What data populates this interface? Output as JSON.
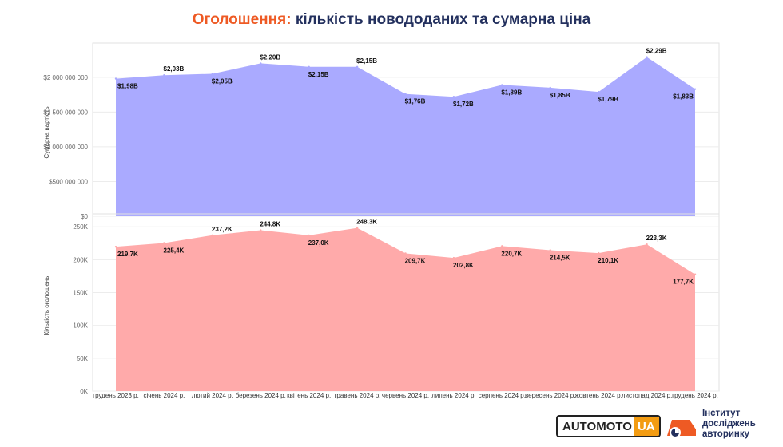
{
  "title": {
    "prefix": "Оголошення:",
    "rest": " кількість новододаних та сумарна ціна"
  },
  "colors": {
    "title_accent": "#ee5a24",
    "title_main": "#23305e",
    "top_area": "#aaaaff",
    "bottom_area": "#ffaaaa",
    "logo_orange": "#f39c12"
  },
  "chart_data": [
    {
      "type": "area",
      "ylabel": "Сумарна вартість",
      "ylim": [
        0,
        2400000000
      ],
      "y_ticks": [
        "$0",
        "$500 000 000",
        "$1 000 000 000",
        "$1 500 000 000",
        "$2 000 000 000"
      ],
      "y_tick_values": [
        0,
        500000000,
        1000000000,
        1500000000,
        2000000000
      ],
      "categories": [
        "грудень 2023 р.",
        "січень 2024 р.",
        "лютий 2024 р.",
        "березень 2024 р.",
        "квітень 2024 р.",
        "травень 2024 р.",
        "червень 2024 р.",
        "липень 2024 р.",
        "серпень 2024 р.",
        "вересень 2024 р.",
        "жовтень 2024 р.",
        "листопад 2024 р.",
        "грудень 2024 р."
      ],
      "values": [
        1980000000,
        2030000000,
        2050000000,
        2200000000,
        2150000000,
        2150000000,
        1760000000,
        1720000000,
        1890000000,
        1850000000,
        1790000000,
        2290000000,
        1830000000
      ],
      "labels": [
        "$1,98B",
        "$2,03B",
        "$2,05B",
        "$2,20B",
        "$2,15B",
        "$2,15B",
        "$1,76B",
        "$1,72B",
        "$1,89B",
        "$1,85B",
        "$1,79B",
        "$2,29B",
        "$1,83B"
      ],
      "grid": true
    },
    {
      "type": "area",
      "ylabel": "Кількість оголошень",
      "ylim": [
        0,
        260000
      ],
      "y_ticks": [
        "0K",
        "50K",
        "100K",
        "150K",
        "200K",
        "250K"
      ],
      "y_tick_values": [
        0,
        50000,
        100000,
        150000,
        200000,
        250000
      ],
      "categories": [
        "грудень 2023 р.",
        "січень 2024 р.",
        "лютий 2024 р.",
        "березень 2024 р.",
        "квітень 2024 р.",
        "травень 2024 р.",
        "червень 2024 р.",
        "липень 2024 р.",
        "серпень 2024 р.",
        "вересень 2024 р.",
        "жовтень 2024 р.",
        "листопад 2024 р.",
        "грудень 2024 р."
      ],
      "values": [
        219700,
        225400,
        237200,
        244800,
        237000,
        248300,
        209700,
        202800,
        220700,
        214500,
        210100,
        223300,
        177700
      ],
      "labels": [
        "219,7K",
        "225,4K",
        "237,2K",
        "244,8K",
        "237,0K",
        "248,3K",
        "209,7K",
        "202,8K",
        "220,7K",
        "214,5K",
        "210,1K",
        "223,3K",
        "177,7K"
      ],
      "grid": true
    }
  ],
  "footer": {
    "automoto_main": "AUTOMOTO",
    "automoto_ua": "UA",
    "institute_text": "Інститут\nдосліджень\nавторинку"
  }
}
